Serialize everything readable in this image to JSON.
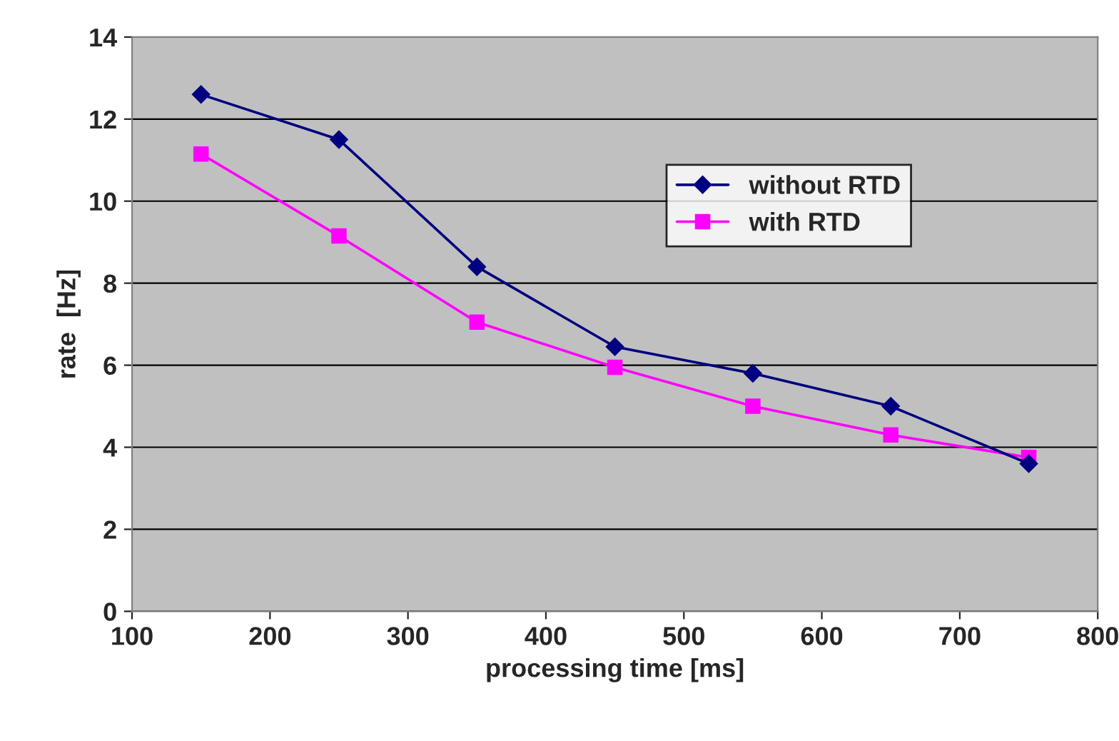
{
  "chart_data": {
    "type": "line",
    "xlabel": "processing time [ms]",
    "ylabel": "rate  [Hz]",
    "x": [
      150,
      250,
      350,
      450,
      550,
      650,
      750
    ],
    "series": [
      {
        "name": "without RTD",
        "color": "#000080",
        "marker": "diamond",
        "values": [
          12.6,
          11.5,
          8.4,
          6.45,
          5.8,
          5.0,
          3.6
        ]
      },
      {
        "name": "with RTD",
        "color": "#ff00ff",
        "marker": "square",
        "values": [
          11.15,
          9.15,
          7.05,
          5.95,
          5.0,
          4.3,
          3.75
        ]
      }
    ],
    "xlim": [
      100,
      800
    ],
    "xticks": [
      100,
      200,
      300,
      400,
      500,
      600,
      700,
      800
    ],
    "ylim": [
      0,
      14
    ],
    "yticks": [
      0,
      2,
      4,
      6,
      8,
      10,
      12,
      14
    ],
    "grid": "y",
    "legend": "top right",
    "line_style": "solid"
  }
}
